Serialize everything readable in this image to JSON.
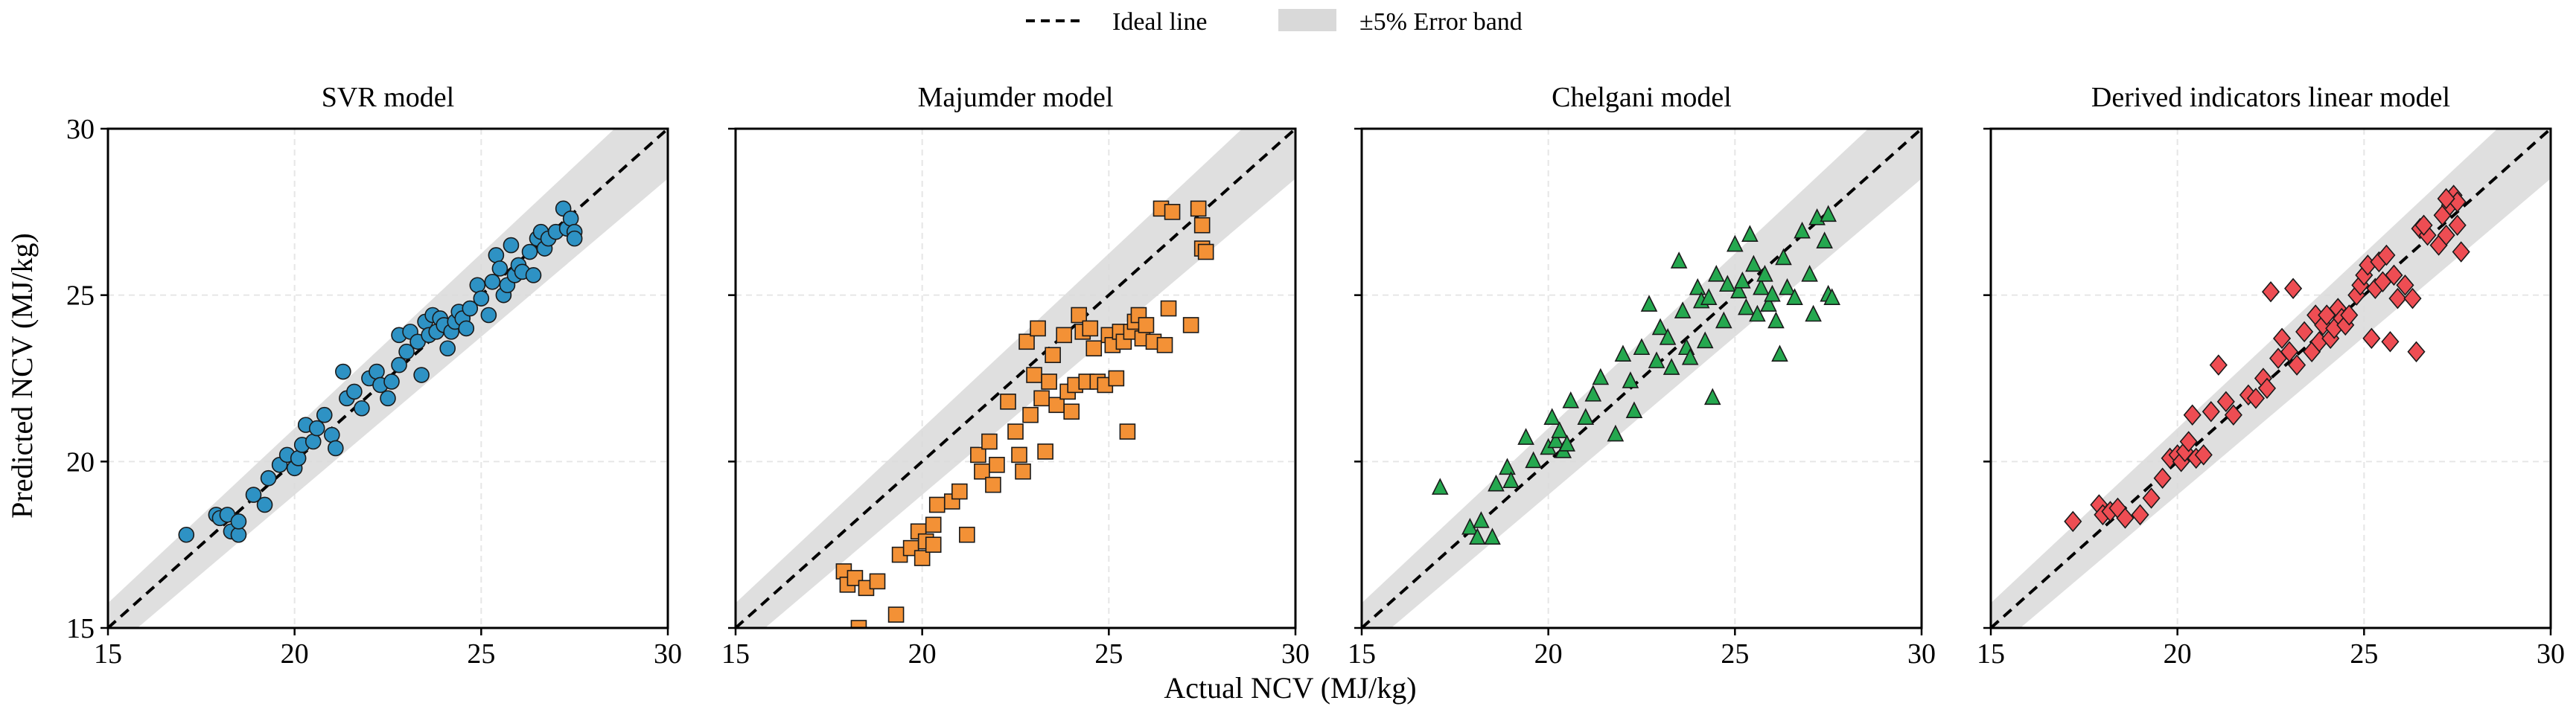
{
  "figure": {
    "xlabel": "Actual NCV (MJ/kg)",
    "ylabel": "Predicted NCV (MJ/kg)",
    "legend": {
      "placement": "top-center",
      "items": [
        {
          "label": "Ideal line",
          "style": "black dashed line"
        },
        {
          "label": "±5% Error band",
          "style": "light grey band"
        }
      ]
    },
    "error_band_color": "#d9d9d9",
    "ideal_line_color": "#000000",
    "grid": true
  },
  "chart_data": [
    {
      "type": "scatter",
      "title": "SVR model",
      "marker": "circle",
      "color": "#2e92c4",
      "xlim": [
        15,
        30
      ],
      "ylim": [
        15,
        30
      ],
      "xticks": [
        15,
        20,
        25,
        30
      ],
      "yticks": [
        15,
        20,
        25,
        30
      ],
      "points": [
        [
          17.1,
          17.8
        ],
        [
          17.9,
          18.4
        ],
        [
          18.0,
          18.3
        ],
        [
          18.2,
          18.4
        ],
        [
          18.3,
          17.9
        ],
        [
          18.5,
          17.8
        ],
        [
          18.5,
          18.2
        ],
        [
          18.9,
          19.0
        ],
        [
          19.2,
          18.7
        ],
        [
          19.3,
          19.5
        ],
        [
          19.6,
          19.9
        ],
        [
          19.8,
          20.2
        ],
        [
          20.0,
          19.8
        ],
        [
          20.1,
          20.1
        ],
        [
          20.2,
          20.5
        ],
        [
          20.3,
          21.1
        ],
        [
          20.5,
          20.6
        ],
        [
          20.6,
          21.0
        ],
        [
          20.8,
          21.4
        ],
        [
          21.0,
          20.8
        ],
        [
          21.1,
          20.4
        ],
        [
          21.3,
          22.7
        ],
        [
          21.4,
          21.9
        ],
        [
          21.6,
          22.1
        ],
        [
          21.8,
          21.6
        ],
        [
          22.0,
          22.5
        ],
        [
          22.2,
          22.7
        ],
        [
          22.3,
          22.3
        ],
        [
          22.5,
          21.9
        ],
        [
          22.6,
          22.4
        ],
        [
          22.8,
          23.8
        ],
        [
          22.8,
          22.9
        ],
        [
          23.0,
          23.3
        ],
        [
          23.1,
          23.9
        ],
        [
          23.3,
          23.6
        ],
        [
          23.4,
          22.6
        ],
        [
          23.5,
          24.2
        ],
        [
          23.6,
          23.8
        ],
        [
          23.7,
          24.4
        ],
        [
          23.8,
          23.9
        ],
        [
          23.9,
          24.3
        ],
        [
          24.0,
          24.1
        ],
        [
          24.1,
          23.4
        ],
        [
          24.2,
          23.9
        ],
        [
          24.3,
          24.2
        ],
        [
          24.4,
          24.5
        ],
        [
          24.5,
          24.3
        ],
        [
          24.6,
          24.0
        ],
        [
          24.7,
          24.6
        ],
        [
          24.9,
          25.3
        ],
        [
          25.0,
          24.9
        ],
        [
          25.2,
          24.4
        ],
        [
          25.3,
          25.4
        ],
        [
          25.4,
          26.2
        ],
        [
          25.5,
          25.8
        ],
        [
          25.6,
          25.0
        ],
        [
          25.7,
          25.3
        ],
        [
          25.8,
          26.5
        ],
        [
          25.9,
          25.6
        ],
        [
          26.0,
          25.9
        ],
        [
          26.1,
          25.7
        ],
        [
          26.3,
          26.3
        ],
        [
          26.4,
          25.6
        ],
        [
          26.5,
          26.7
        ],
        [
          26.6,
          26.9
        ],
        [
          26.7,
          26.4
        ],
        [
          26.8,
          26.7
        ],
        [
          27.0,
          26.9
        ],
        [
          27.2,
          27.6
        ],
        [
          27.3,
          27.0
        ],
        [
          27.4,
          27.3
        ],
        [
          27.5,
          26.9
        ],
        [
          27.5,
          26.7
        ]
      ]
    },
    {
      "type": "scatter",
      "title": "Majumder model",
      "marker": "square",
      "color": "#f39136",
      "xlim": [
        15,
        30
      ],
      "ylim": [
        15,
        30
      ],
      "xticks": [
        15,
        20,
        25,
        30
      ],
      "yticks": [
        15,
        20,
        25,
        30
      ],
      "points": [
        [
          17.9,
          16.7
        ],
        [
          18.0,
          16.3
        ],
        [
          18.2,
          16.5
        ],
        [
          18.3,
          15.0
        ],
        [
          18.5,
          16.2
        ],
        [
          18.8,
          16.4
        ],
        [
          19.3,
          15.4
        ],
        [
          19.4,
          17.2
        ],
        [
          19.7,
          17.4
        ],
        [
          19.9,
          17.9
        ],
        [
          20.0,
          17.1
        ],
        [
          20.1,
          17.6
        ],
        [
          20.3,
          17.5
        ],
        [
          20.3,
          18.1
        ],
        [
          20.4,
          18.7
        ],
        [
          20.8,
          18.8
        ],
        [
          21.0,
          19.1
        ],
        [
          21.2,
          17.8
        ],
        [
          21.5,
          20.2
        ],
        [
          21.6,
          19.7
        ],
        [
          21.8,
          20.6
        ],
        [
          21.9,
          19.3
        ],
        [
          22.0,
          19.9
        ],
        [
          22.3,
          21.8
        ],
        [
          22.5,
          20.9
        ],
        [
          22.6,
          20.2
        ],
        [
          22.7,
          19.7
        ],
        [
          22.8,
          23.6
        ],
        [
          22.9,
          21.4
        ],
        [
          23.0,
          22.6
        ],
        [
          23.1,
          24.0
        ],
        [
          23.2,
          21.9
        ],
        [
          23.3,
          20.3
        ],
        [
          23.4,
          22.4
        ],
        [
          23.5,
          23.2
        ],
        [
          23.6,
          21.7
        ],
        [
          23.8,
          23.8
        ],
        [
          23.9,
          22.1
        ],
        [
          24.0,
          21.5
        ],
        [
          24.1,
          22.3
        ],
        [
          24.2,
          24.4
        ],
        [
          24.3,
          23.9
        ],
        [
          24.4,
          22.4
        ],
        [
          24.5,
          24.0
        ],
        [
          24.6,
          23.4
        ],
        [
          24.7,
          22.4
        ],
        [
          24.9,
          22.3
        ],
        [
          25.0,
          23.8
        ],
        [
          25.1,
          23.5
        ],
        [
          25.2,
          22.5
        ],
        [
          25.3,
          23.9
        ],
        [
          25.4,
          23.6
        ],
        [
          25.5,
          20.9
        ],
        [
          25.6,
          23.9
        ],
        [
          25.7,
          24.2
        ],
        [
          25.8,
          24.4
        ],
        [
          25.9,
          23.7
        ],
        [
          26.0,
          24.1
        ],
        [
          26.2,
          23.6
        ],
        [
          26.4,
          27.6
        ],
        [
          26.5,
          23.5
        ],
        [
          26.6,
          24.6
        ],
        [
          26.7,
          27.5
        ],
        [
          27.2,
          24.1
        ],
        [
          27.4,
          27.6
        ],
        [
          27.5,
          26.4
        ],
        [
          27.5,
          27.1
        ],
        [
          27.6,
          26.3
        ]
      ]
    },
    {
      "type": "scatter",
      "title": "Chelgani model",
      "marker": "triangle",
      "color": "#25a84f",
      "xlim": [
        15,
        30
      ],
      "ylim": [
        15,
        30
      ],
      "xticks": [
        15,
        20,
        25,
        30
      ],
      "yticks": [
        15,
        20,
        25,
        30
      ],
      "points": [
        [
          17.1,
          19.2
        ],
        [
          17.9,
          18.0
        ],
        [
          18.1,
          17.7
        ],
        [
          18.2,
          18.2
        ],
        [
          18.5,
          17.7
        ],
        [
          18.6,
          19.3
        ],
        [
          18.9,
          19.8
        ],
        [
          19.0,
          19.4
        ],
        [
          19.4,
          20.7
        ],
        [
          19.6,
          20.0
        ],
        [
          20.0,
          20.4
        ],
        [
          20.1,
          21.3
        ],
        [
          20.2,
          20.6
        ],
        [
          20.3,
          20.9
        ],
        [
          20.4,
          20.3
        ],
        [
          20.5,
          20.5
        ],
        [
          20.6,
          21.8
        ],
        [
          21.0,
          21.3
        ],
        [
          21.2,
          22.0
        ],
        [
          21.4,
          22.5
        ],
        [
          21.8,
          20.8
        ],
        [
          22.0,
          23.2
        ],
        [
          22.2,
          22.4
        ],
        [
          22.3,
          21.5
        ],
        [
          22.5,
          23.4
        ],
        [
          22.7,
          24.7
        ],
        [
          22.9,
          23.0
        ],
        [
          23.0,
          24.0
        ],
        [
          23.2,
          23.7
        ],
        [
          23.3,
          22.8
        ],
        [
          23.5,
          26.0
        ],
        [
          23.6,
          24.5
        ],
        [
          23.7,
          23.4
        ],
        [
          23.8,
          23.1
        ],
        [
          24.0,
          25.2
        ],
        [
          24.1,
          24.8
        ],
        [
          24.2,
          23.6
        ],
        [
          24.3,
          24.9
        ],
        [
          24.4,
          21.9
        ],
        [
          24.5,
          25.6
        ],
        [
          24.7,
          24.2
        ],
        [
          24.8,
          25.3
        ],
        [
          25.0,
          26.5
        ],
        [
          25.1,
          25.1
        ],
        [
          25.2,
          25.4
        ],
        [
          25.3,
          24.6
        ],
        [
          25.4,
          26.8
        ],
        [
          25.5,
          25.9
        ],
        [
          25.6,
          24.4
        ],
        [
          25.7,
          25.2
        ],
        [
          25.8,
          25.6
        ],
        [
          25.9,
          24.7
        ],
        [
          26.0,
          25.0
        ],
        [
          26.1,
          24.2
        ],
        [
          26.3,
          26.1
        ],
        [
          26.4,
          25.2
        ],
        [
          26.6,
          24.9
        ],
        [
          26.8,
          26.9
        ],
        [
          27.0,
          25.6
        ],
        [
          27.2,
          27.3
        ],
        [
          27.4,
          26.6
        ],
        [
          27.5,
          27.4
        ],
        [
          27.5,
          25.0
        ],
        [
          27.6,
          24.9
        ],
        [
          26.2,
          23.2
        ],
        [
          27.1,
          24.4
        ]
      ]
    },
    {
      "type": "scatter",
      "title": "Derived indicators linear model",
      "marker": "diamond",
      "color": "#ee4d53",
      "xlim": [
        15,
        30
      ],
      "ylim": [
        15,
        30
      ],
      "xticks": [
        15,
        20,
        25,
        30
      ],
      "yticks": [
        15,
        20,
        25,
        30
      ],
      "points": [
        [
          17.2,
          18.2
        ],
        [
          17.9,
          18.7
        ],
        [
          18.0,
          18.4
        ],
        [
          18.2,
          18.5
        ],
        [
          18.4,
          18.6
        ],
        [
          18.6,
          18.3
        ],
        [
          19.0,
          18.4
        ],
        [
          19.3,
          18.9
        ],
        [
          19.6,
          19.5
        ],
        [
          19.8,
          20.1
        ],
        [
          20.0,
          20.2
        ],
        [
          20.1,
          20.0
        ],
        [
          20.2,
          20.3
        ],
        [
          20.3,
          20.6
        ],
        [
          20.4,
          21.4
        ],
        [
          20.5,
          20.1
        ],
        [
          20.7,
          20.2
        ],
        [
          20.9,
          21.5
        ],
        [
          21.1,
          22.9
        ],
        [
          21.3,
          21.8
        ],
        [
          21.5,
          21.4
        ],
        [
          21.9,
          22.0
        ],
        [
          22.1,
          21.9
        ],
        [
          22.3,
          22.5
        ],
        [
          22.4,
          22.2
        ],
        [
          22.5,
          25.1
        ],
        [
          22.7,
          23.1
        ],
        [
          22.8,
          23.7
        ],
        [
          23.0,
          23.3
        ],
        [
          23.1,
          25.2
        ],
        [
          23.2,
          22.9
        ],
        [
          23.4,
          23.9
        ],
        [
          23.6,
          23.3
        ],
        [
          23.7,
          24.4
        ],
        [
          23.8,
          23.6
        ],
        [
          23.9,
          24.1
        ],
        [
          24.0,
          24.4
        ],
        [
          24.1,
          23.7
        ],
        [
          24.2,
          24.0
        ],
        [
          24.3,
          24.6
        ],
        [
          24.4,
          24.3
        ],
        [
          24.5,
          24.1
        ],
        [
          24.6,
          24.4
        ],
        [
          24.8,
          25.0
        ],
        [
          24.9,
          25.3
        ],
        [
          25.0,
          25.6
        ],
        [
          25.1,
          25.9
        ],
        [
          25.2,
          23.7
        ],
        [
          25.3,
          25.2
        ],
        [
          25.4,
          26.0
        ],
        [
          25.5,
          25.4
        ],
        [
          25.6,
          26.2
        ],
        [
          25.7,
          23.6
        ],
        [
          25.8,
          25.6
        ],
        [
          25.9,
          24.9
        ],
        [
          26.1,
          25.3
        ],
        [
          26.3,
          24.9
        ],
        [
          26.4,
          23.3
        ],
        [
          26.5,
          27.0
        ],
        [
          26.7,
          26.8
        ],
        [
          27.0,
          26.5
        ],
        [
          27.1,
          27.4
        ],
        [
          27.2,
          26.8
        ],
        [
          27.3,
          27.7
        ],
        [
          27.4,
          28.0
        ],
        [
          27.5,
          27.1
        ],
        [
          27.6,
          26.3
        ],
        [
          27.5,
          27.8
        ],
        [
          26.6,
          27.1
        ],
        [
          27.2,
          27.9
        ]
      ]
    }
  ]
}
